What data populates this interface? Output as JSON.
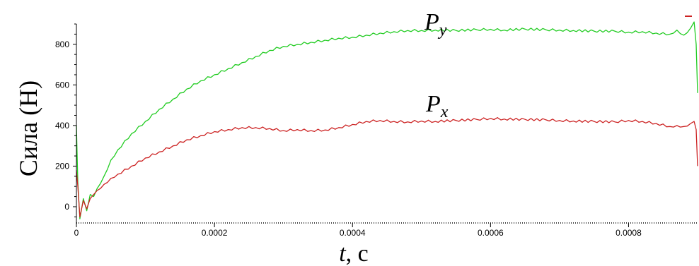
{
  "chart_data": {
    "type": "line",
    "title": "",
    "ylabel": "Сила (Н)",
    "xlabel_var": "t",
    "xlabel_unit": ", с",
    "xlim": [
      0,
      0.0009
    ],
    "ylim": [
      -80,
      900
    ],
    "x_ticks": [
      0,
      0.0002,
      0.0004,
      0.0006,
      0.0008
    ],
    "x_tick_labels": [
      "0",
      "0.0002",
      "0.0004",
      "0.0006",
      "0.0008"
    ],
    "y_ticks": [
      0,
      200,
      400,
      600,
      800
    ],
    "y_tick_labels": [
      "0",
      "200",
      "400",
      "600",
      "800"
    ],
    "series": [
      {
        "name": "Py",
        "label_main": "P",
        "label_sub": "y",
        "color": "#22cc22",
        "x": [
          0,
          2e-06,
          5e-06,
          1e-05,
          1.5e-05,
          2e-05,
          2.5e-05,
          3e-05,
          4e-05,
          5e-05,
          6e-05,
          8e-05,
          0.0001,
          0.00012,
          0.00014,
          0.00016,
          0.00018,
          0.0002,
          0.00022,
          0.00024,
          0.00026,
          0.00028,
          0.0003,
          0.00032,
          0.00034,
          0.00036,
          0.00038,
          0.0004,
          0.00042,
          0.00044,
          0.00046,
          0.00048,
          0.0005,
          0.00052,
          0.00055,
          0.00058,
          0.0006,
          0.00062,
          0.00065,
          0.00068,
          0.0007,
          0.00072,
          0.00075,
          0.00078,
          0.0008,
          0.00082,
          0.00084,
          0.00086,
          0.00087,
          0.00088,
          0.00089,
          0.000895,
          0.000898,
          0.0009
        ],
        "y": [
          400,
          120,
          -60,
          40,
          -20,
          60,
          50,
          90,
          150,
          230,
          280,
          360,
          420,
          480,
          530,
          580,
          620,
          650,
          680,
          710,
          740,
          770,
          790,
          800,
          810,
          820,
          830,
          835,
          845,
          855,
          862,
          868,
          868,
          870,
          868,
          872,
          874,
          870,
          875,
          872,
          870,
          868,
          865,
          865,
          860,
          862,
          855,
          850,
          870,
          845,
          880,
          910,
          800,
          560
        ]
      },
      {
        "name": "Px",
        "label_main": "P",
        "label_sub": "x",
        "color": "#cc2222",
        "x": [
          0,
          2e-06,
          5e-06,
          1e-05,
          1.5e-05,
          2e-05,
          2.5e-05,
          3e-05,
          4e-05,
          5e-05,
          6e-05,
          8e-05,
          0.0001,
          0.00012,
          0.00014,
          0.00016,
          0.00018,
          0.0002,
          0.00022,
          0.00024,
          0.00026,
          0.00028,
          0.0003,
          0.00032,
          0.00034,
          0.00036,
          0.00038,
          0.0004,
          0.00042,
          0.00044,
          0.00046,
          0.00048,
          0.0005,
          0.00052,
          0.00055,
          0.00058,
          0.0006,
          0.00062,
          0.00065,
          0.00068,
          0.0007,
          0.00072,
          0.00075,
          0.00078,
          0.0008,
          0.00082,
          0.00084,
          0.00086,
          0.00087,
          0.00088,
          0.00089,
          0.000895,
          0.000898,
          0.0009
        ],
        "y": [
          180,
          100,
          -50,
          30,
          -10,
          40,
          60,
          80,
          110,
          140,
          160,
          200,
          240,
          270,
          300,
          330,
          350,
          370,
          380,
          390,
          390,
          385,
          375,
          380,
          375,
          378,
          390,
          405,
          420,
          425,
          420,
          418,
          422,
          420,
          425,
          430,
          435,
          432,
          430,
          428,
          425,
          422,
          420,
          418,
          425,
          420,
          410,
          395,
          400,
          395,
          410,
          420,
          380,
          200
        ]
      }
    ]
  }
}
